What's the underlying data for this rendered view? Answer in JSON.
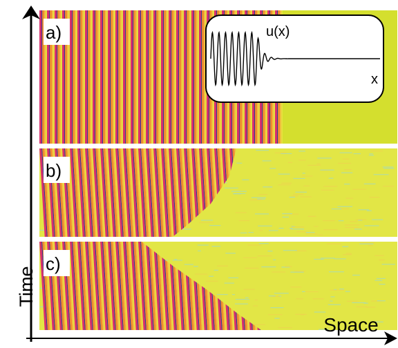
{
  "panels": [
    {
      "label": "a)"
    },
    {
      "label": "b)"
    },
    {
      "label": "c)"
    }
  ],
  "inset": {
    "curve_label": "u(x)",
    "axis_label": "x"
  },
  "axes": {
    "y_label": "Time",
    "x_label": "Space"
  }
}
